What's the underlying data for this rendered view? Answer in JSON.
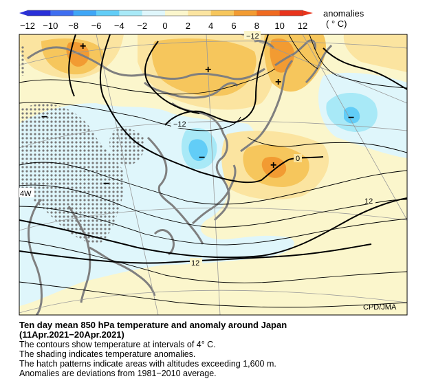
{
  "colorbar": {
    "ticks": [
      "−12",
      "−10",
      "−8",
      "−6",
      "−4",
      "−2",
      "0",
      "2",
      "4",
      "6",
      "8",
      "10",
      "12"
    ],
    "title": "anomalies",
    "unit": "( ° C)",
    "colors": [
      "#2a30d8",
      "#3f6ef0",
      "#3fa6f6",
      "#62cdf7",
      "#a8e9f7",
      "#dff6fb",
      "#fbf6cc",
      "#fbe4a0",
      "#f6c65c",
      "#f29b32",
      "#ef6a20",
      "#e8341c"
    ]
  },
  "map": {
    "credit": "CPD/JMA",
    "contour_labels": [
      "−12",
      "−12",
      "−",
      "0",
      "12",
      "12",
      "4W"
    ],
    "markers": [
      "+",
      "+",
      "+",
      "+",
      "−",
      "−",
      "−"
    ]
  },
  "caption": {
    "title_line1": "Ten day mean 850 hPa temperature and anomaly around Japan",
    "title_line2": "(11Apr.2021−20Apr.2021)",
    "lines": [
      "The contours show temperature at intervals of 4° C.",
      "The shading indicates temperature anomalies.",
      "The hatch patterns indicate areas with altitudes exceeding 1,600 m.",
      "Anomalies are deviations from 1981−2010 average."
    ]
  }
}
